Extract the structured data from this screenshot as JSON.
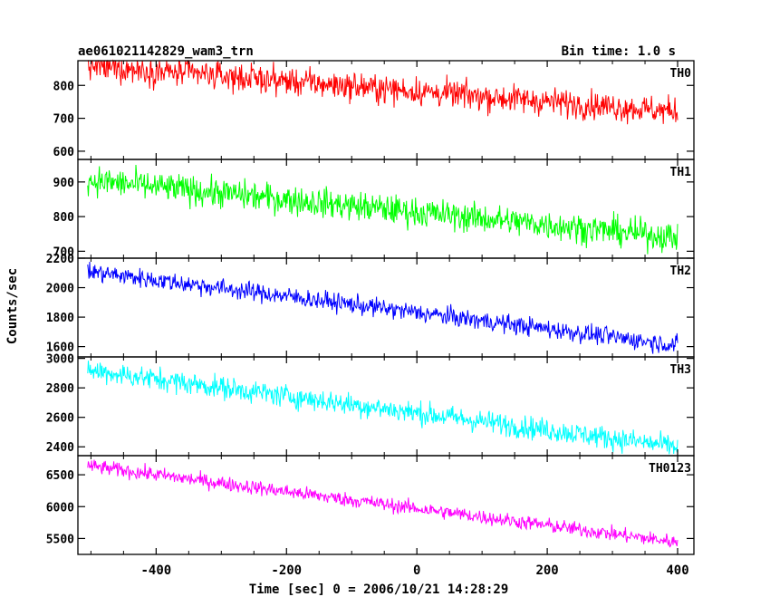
{
  "header": {
    "left": "ae061021142829_wam3_trn",
    "right": "Bin time: 1.0 s"
  },
  "chart_data": {
    "type": "line",
    "title": "ae061021142829_wam3_trn",
    "bin_time": "Bin time: 1.0 s",
    "xlabel": "Time [sec] 0 = 2006/10/21 14:28:29",
    "ylabel": "Counts/sec",
    "xlim": [
      -520,
      425
    ],
    "x_ticks": [
      -400,
      -200,
      0,
      200,
      400
    ],
    "x_range_of_data": [
      -505,
      400
    ],
    "grid": false,
    "legend": "none",
    "panels": [
      {
        "name": "TH0",
        "color": "#ff0000",
        "ylim": [
          575,
          875
        ],
        "y_ticks": [
          600,
          700,
          800
        ],
        "trend_start": 860,
        "trend_end": 720,
        "noise": 30
      },
      {
        "name": "TH1",
        "color": "#00ff00",
        "ylim": [
          680,
          965
        ],
        "y_ticks": [
          700,
          800,
          900
        ],
        "trend_start": 905,
        "trend_end": 740,
        "noise": 30
      },
      {
        "name": "TH2",
        "color": "#0000ff",
        "ylim": [
          1530,
          2200
        ],
        "y_ticks": [
          1600,
          1800,
          2000,
          2200
        ],
        "trend_start": 2110,
        "trend_end": 1610,
        "noise": 45
      },
      {
        "name": "TH3",
        "color": "#00ffff",
        "ylim": [
          2340,
          3010
        ],
        "y_ticks": [
          2400,
          2600,
          2800,
          3000
        ],
        "trend_start": 2920,
        "trend_end": 2400,
        "noise": 55
      },
      {
        "name": "TH0123",
        "color": "#ff00ff",
        "ylim": [
          5250,
          6800
        ],
        "y_ticks": [
          5500,
          6000,
          6500
        ],
        "trend_start": 6640,
        "trend_end": 5440,
        "noise": 80
      }
    ]
  }
}
